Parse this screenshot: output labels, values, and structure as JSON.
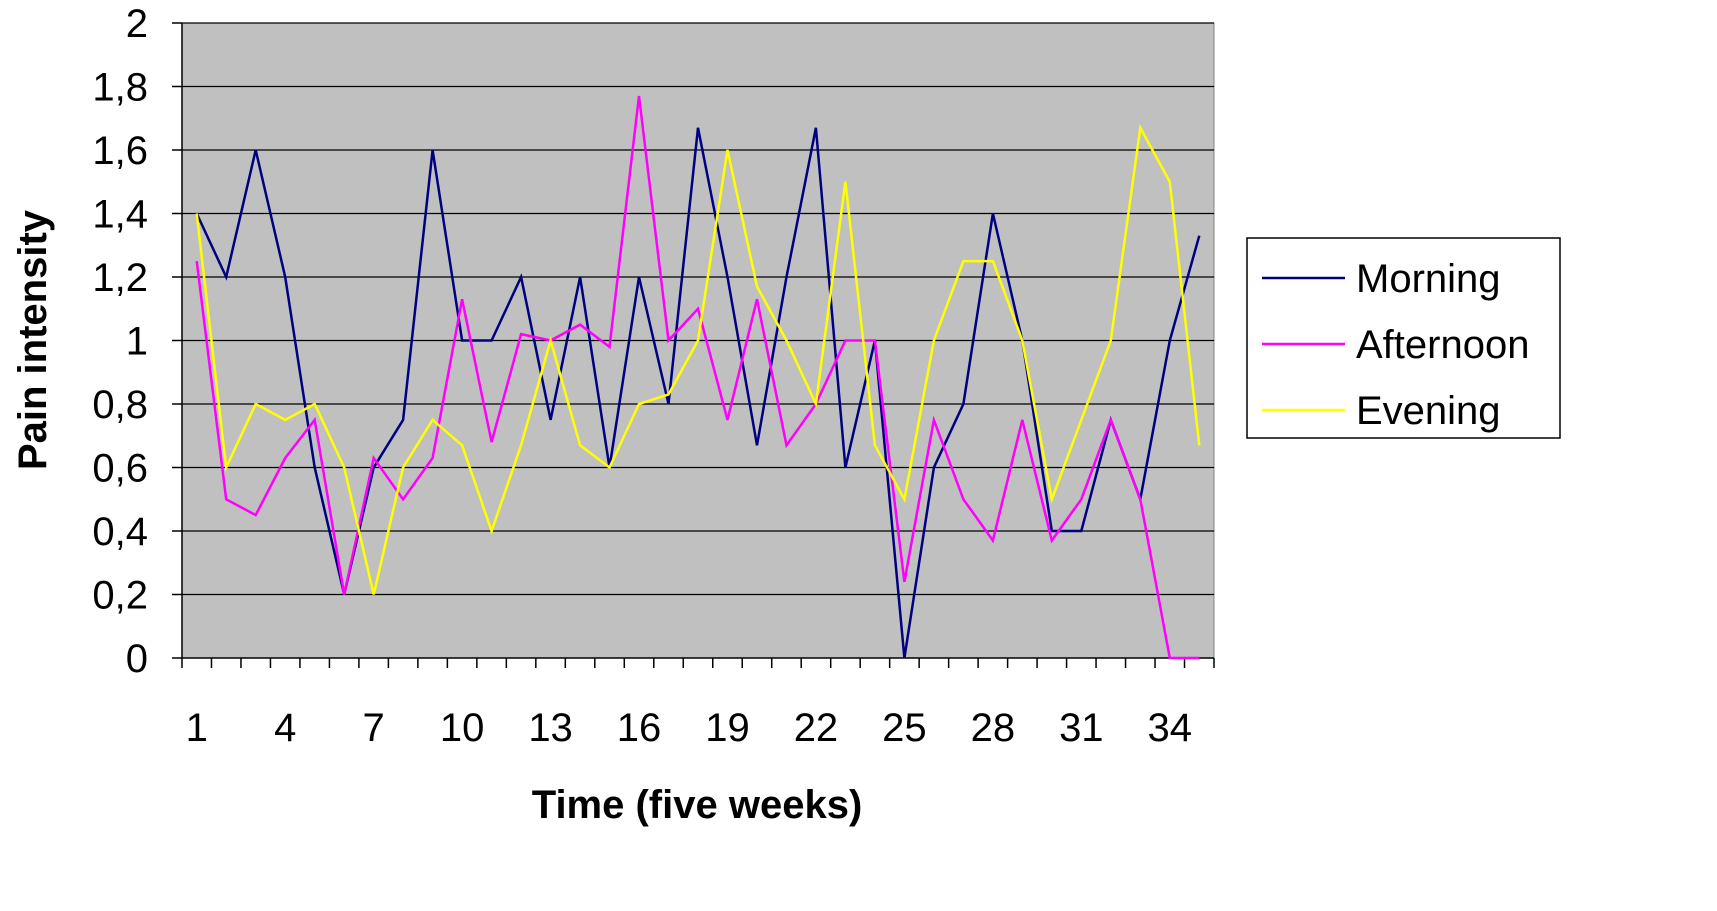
{
  "chart_data": {
    "type": "line",
    "title": "",
    "xlabel": "Time (five weeks)",
    "ylabel": "Pain intensity",
    "x": [
      1,
      2,
      3,
      4,
      5,
      6,
      7,
      8,
      9,
      10,
      11,
      12,
      13,
      14,
      15,
      16,
      17,
      18,
      19,
      20,
      21,
      22,
      23,
      24,
      25,
      26,
      27,
      28,
      29,
      30,
      31,
      32,
      33,
      34,
      35
    ],
    "xtick_labels": [
      "1",
      "4",
      "7",
      "10",
      "13",
      "16",
      "19",
      "22",
      "25",
      "28",
      "31",
      "34"
    ],
    "xtick_values": [
      1,
      4,
      7,
      10,
      13,
      16,
      19,
      22,
      25,
      28,
      31,
      34
    ],
    "ylim": [
      0,
      2
    ],
    "ytick_labels": [
      "0",
      "0,2",
      "0,4",
      "0,6",
      "0,8",
      "1",
      "1,2",
      "1,4",
      "1,6",
      "1,8",
      "2"
    ],
    "ytick_values": [
      0,
      0.2,
      0.4,
      0.6,
      0.8,
      1,
      1.2,
      1.4,
      1.6,
      1.8,
      2
    ],
    "grid": "horizontal",
    "plot_background": "#c0c0c0",
    "legend_position": "right",
    "series": [
      {
        "name": "Morning",
        "color": "#000080",
        "values": [
          1.4,
          1.2,
          1.6,
          1.2,
          0.6,
          0.2,
          0.6,
          0.75,
          1.6,
          1.0,
          1.0,
          1.2,
          0.75,
          1.2,
          0.6,
          1.2,
          0.8,
          1.67,
          1.2,
          0.67,
          1.2,
          1.67,
          0.6,
          1.0,
          0.0,
          0.6,
          0.8,
          1.4,
          1.0,
          0.4,
          0.4,
          0.75,
          0.5,
          1.0,
          1.33
        ]
      },
      {
        "name": "Afternoon",
        "color": "#ff00ff",
        "values": [
          1.25,
          0.5,
          0.45,
          0.63,
          0.75,
          0.2,
          0.63,
          0.5,
          0.63,
          1.13,
          0.68,
          1.02,
          1.0,
          1.05,
          0.98,
          1.77,
          1.0,
          1.1,
          0.75,
          1.13,
          0.67,
          0.8,
          1.0,
          1.0,
          0.24,
          0.75,
          0.5,
          0.37,
          0.75,
          0.37,
          0.5,
          0.75,
          0.5,
          0.0,
          0.0
        ]
      },
      {
        "name": "Evening",
        "color": "#ffff00",
        "values": [
          1.4,
          0.6,
          0.8,
          0.75,
          0.8,
          0.6,
          0.2,
          0.6,
          0.75,
          0.67,
          0.4,
          0.67,
          1.0,
          0.67,
          0.6,
          0.8,
          0.83,
          1.0,
          1.6,
          1.17,
          1.0,
          0.8,
          1.5,
          0.67,
          0.5,
          1.0,
          1.25,
          1.25,
          1.0,
          0.5,
          0.75,
          1.0,
          1.67,
          1.5,
          0.67
        ]
      }
    ]
  }
}
